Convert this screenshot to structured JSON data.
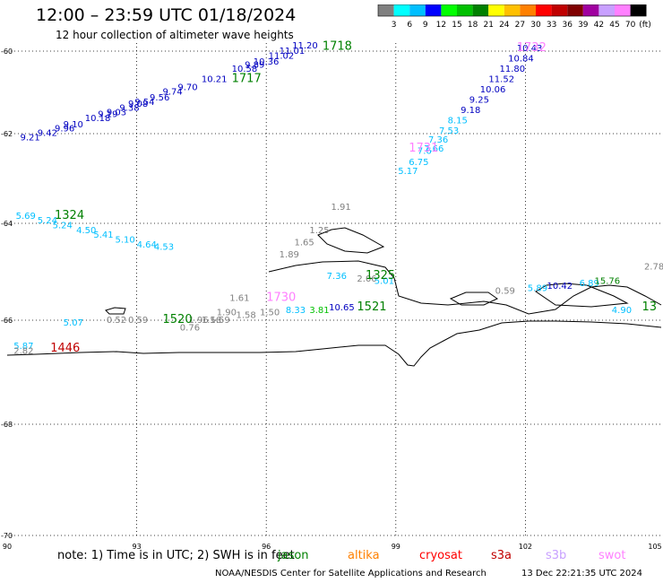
{
  "header": {
    "title": "12:00 – 23:59 UTC 01/18/2024",
    "subtitle": "12 hour collection of altimeter wave heights"
  },
  "legend": {
    "unit": "(ft)",
    "bins": [
      {
        "label": "3",
        "color": "#808080"
      },
      {
        "label": "6",
        "color": "#00ffff"
      },
      {
        "label": "9",
        "color": "#00bfff"
      },
      {
        "label": "12",
        "color": "#0000ff"
      },
      {
        "label": "15",
        "color": "#00ff00"
      },
      {
        "label": "18",
        "color": "#00c000"
      },
      {
        "label": "21",
        "color": "#008000"
      },
      {
        "label": "24",
        "color": "#ffff00"
      },
      {
        "label": "27",
        "color": "#ffc000"
      },
      {
        "label": "30",
        "color": "#ff8000"
      },
      {
        "label": "33",
        "color": "#ff0000"
      },
      {
        "label": "36",
        "color": "#c00000"
      },
      {
        "label": "39",
        "color": "#800000"
      },
      {
        "label": "42",
        "color": "#a000a0"
      },
      {
        "label": "45",
        "color": "#c8a0ff"
      },
      {
        "label": "70",
        "color": "#ff80ff"
      },
      {
        "label": "",
        "color": "#000000"
      }
    ]
  },
  "map": {
    "lat_labels": [
      {
        "text": "-60",
        "lat": -60
      },
      {
        "text": "-62",
        "lat": -62
      },
      {
        "text": "-64",
        "lat": -64
      },
      {
        "text": "-66",
        "lat": -66
      },
      {
        "text": "-68",
        "lat": -68
      },
      {
        "text": "-70",
        "lat": -70
      }
    ],
    "lon_labels": [
      {
        "text": "90",
        "lon": 90
      },
      {
        "text": "93",
        "lon": 93
      },
      {
        "text": "96",
        "lon": 96
      },
      {
        "text": "99",
        "lon": 99
      },
      {
        "text": "102",
        "lon": 102
      },
      {
        "text": "105",
        "lon": 105
      }
    ],
    "track_labels": [
      {
        "text": "1718",
        "lon": 97.3,
        "lat": -59.97,
        "color": "#008000"
      },
      {
        "text": "1717",
        "lon": 95.2,
        "lat": -60.75,
        "color": "#008000"
      },
      {
        "text": "1732",
        "lon": 101.8,
        "lat": -60.0,
        "color": "#ff80ff"
      },
      {
        "text": "1731",
        "lon": 99.3,
        "lat": -62.4,
        "color": "#ff80ff"
      },
      {
        "text": "1324",
        "lon": 91.1,
        "lat": -63.9,
        "color": "#008000"
      },
      {
        "text": "1325",
        "lon": 98.3,
        "lat": -65.15,
        "color": "#008000"
      },
      {
        "text": "1521",
        "lon": 98.1,
        "lat": -65.8,
        "color": "#008000"
      },
      {
        "text": "1730",
        "lon": 96.0,
        "lat": -65.6,
        "color": "#ff80ff"
      },
      {
        "text": "1520",
        "lon": 93.6,
        "lat": -66.05,
        "color": "#008000"
      },
      {
        "text": "1446",
        "lon": 91.0,
        "lat": -66.6,
        "color": "#c00000"
      },
      {
        "text": "13",
        "lon": 104.7,
        "lat": -65.8,
        "color": "#008000"
      }
    ],
    "wave_labels": [
      {
        "text": "11.20",
        "lon": 96.6,
        "lat": -59.93,
        "color": "#0000c0"
      },
      {
        "text": "11.01",
        "lon": 96.3,
        "lat": -60.07,
        "color": "#0000c0"
      },
      {
        "text": "11.02",
        "lon": 96.05,
        "lat": -60.18,
        "color": "#0000c0"
      },
      {
        "text": "10.36",
        "lon": 95.7,
        "lat": -60.33,
        "color": "#0000c0"
      },
      {
        "text": "9.89",
        "lon": 95.5,
        "lat": -60.4,
        "color": "#0000c0"
      },
      {
        "text": "10.58",
        "lon": 95.2,
        "lat": -60.5,
        "color": "#0000c0"
      },
      {
        "text": "10.21",
        "lon": 94.5,
        "lat": -60.75,
        "color": "#0000c0"
      },
      {
        "text": "9.70",
        "lon": 93.95,
        "lat": -60.95,
        "color": "#0000c0"
      },
      {
        "text": "9.74",
        "lon": 93.6,
        "lat": -61.05,
        "color": "#0000c0"
      },
      {
        "text": "9.56",
        "lon": 93.3,
        "lat": -61.2,
        "color": "#0000c0"
      },
      {
        "text": "9.54",
        "lon": 92.95,
        "lat": -61.3,
        "color": "#0000c0"
      },
      {
        "text": "9.08",
        "lon": 92.8,
        "lat": -61.35,
        "color": "#0000c0"
      },
      {
        "text": "9.38",
        "lon": 92.6,
        "lat": -61.45,
        "color": "#0000c0"
      },
      {
        "text": "9.03",
        "lon": 92.3,
        "lat": -61.55,
        "color": "#0000c0"
      },
      {
        "text": "9.19",
        "lon": 92.1,
        "lat": -61.6,
        "color": "#0000c0"
      },
      {
        "text": "10.18",
        "lon": 91.8,
        "lat": -61.7,
        "color": "#0000c0"
      },
      {
        "text": "9.10",
        "lon": 91.3,
        "lat": -61.85,
        "color": "#0000c0"
      },
      {
        "text": "9.96",
        "lon": 91.1,
        "lat": -61.95,
        "color": "#0000c0"
      },
      {
        "text": "9.42",
        "lon": 90.7,
        "lat": -62.05,
        "color": "#0000c0"
      },
      {
        "text": "9.21",
        "lon": 90.3,
        "lat": -62.15,
        "color": "#0000c0"
      },
      {
        "text": "10.43",
        "lon": 101.8,
        "lat": -60.0,
        "color": "#0000c0"
      },
      {
        "text": "10.84",
        "lon": 101.6,
        "lat": -60.25,
        "color": "#0000c0"
      },
      {
        "text": "11.80",
        "lon": 101.4,
        "lat": -60.5,
        "color": "#0000c0"
      },
      {
        "text": "11.52",
        "lon": 101.15,
        "lat": -60.75,
        "color": "#0000c0"
      },
      {
        "text": "10.06",
        "lon": 100.95,
        "lat": -61.0,
        "color": "#0000c0"
      },
      {
        "text": "9.25",
        "lon": 100.7,
        "lat": -61.25,
        "color": "#0000c0"
      },
      {
        "text": "9.18",
        "lon": 100.5,
        "lat": -61.5,
        "color": "#0000c0"
      },
      {
        "text": "8.15",
        "lon": 100.2,
        "lat": -61.75,
        "color": "#00bfff"
      },
      {
        "text": "7.53",
        "lon": 100.0,
        "lat": -62.0,
        "color": "#00bfff"
      },
      {
        "text": "7.36",
        "lon": 99.75,
        "lat": -62.2,
        "color": "#00bfff"
      },
      {
        "text": "7.66",
        "lon": 99.65,
        "lat": -62.4,
        "color": "#00bfff"
      },
      {
        "text": "7.6",
        "lon": 99.5,
        "lat": -62.45,
        "color": "#00bfff"
      },
      {
        "text": "6.75",
        "lon": 99.3,
        "lat": -62.7,
        "color": "#00bfff"
      },
      {
        "text": "5.17",
        "lon": 99.05,
        "lat": -62.9,
        "color": "#00bfff"
      },
      {
        "text": "1.91",
        "lon": 97.5,
        "lat": -63.7,
        "color": "#808080"
      },
      {
        "text": "1.25",
        "lon": 97.0,
        "lat": -64.2,
        "color": "#808080"
      },
      {
        "text": "1.65",
        "lon": 96.65,
        "lat": -64.45,
        "color": "#808080"
      },
      {
        "text": "1.89",
        "lon": 96.3,
        "lat": -64.7,
        "color": "#808080"
      },
      {
        "text": "1.61",
        "lon": 95.15,
        "lat": -65.6,
        "color": "#808080"
      },
      {
        "text": "1.90",
        "lon": 94.85,
        "lat": -65.9,
        "color": "#808080"
      },
      {
        "text": "1.59",
        "lon": 94.7,
        "lat": -66.05,
        "color": "#808080"
      },
      {
        "text": "1.56",
        "lon": 94.5,
        "lat": -66.05,
        "color": "#808080"
      },
      {
        "text": "1.96",
        "lon": 94.2,
        "lat": -66.05,
        "color": "#808080"
      },
      {
        "text": "1.58",
        "lon": 95.3,
        "lat": -65.95,
        "color": "#808080"
      },
      {
        "text": "1.50",
        "lon": 95.85,
        "lat": -65.9,
        "color": "#808080"
      },
      {
        "text": "0.76",
        "lon": 94.0,
        "lat": -66.2,
        "color": "#808080"
      },
      {
        "text": "0.59",
        "lon": 92.8,
        "lat": -66.05,
        "color": "#808080"
      },
      {
        "text": "0.52",
        "lon": 92.3,
        "lat": -66.05,
        "color": "#808080"
      },
      {
        "text": "2.06",
        "lon": 98.1,
        "lat": -65.2,
        "color": "#808080"
      },
      {
        "text": "0.59",
        "lon": 101.3,
        "lat": -65.45,
        "color": "#808080"
      },
      {
        "text": "2.78",
        "lon": 104.75,
        "lat": -64.95,
        "color": "#808080"
      },
      {
        "text": "5.69",
        "lon": 90.2,
        "lat": -63.9,
        "color": "#00bfff"
      },
      {
        "text": "5.24",
        "lon": 90.7,
        "lat": -64.0,
        "color": "#00bfff"
      },
      {
        "text": "5.24",
        "lon": 91.05,
        "lat": -64.1,
        "color": "#00bfff"
      },
      {
        "text": "4.50",
        "lon": 91.6,
        "lat": -64.2,
        "color": "#00bfff"
      },
      {
        "text": "5.41",
        "lon": 92.0,
        "lat": -64.3,
        "color": "#00bfff"
      },
      {
        "text": "5.10",
        "lon": 92.5,
        "lat": -64.4,
        "color": "#00bfff"
      },
      {
        "text": "4.64",
        "lon": 93.0,
        "lat": -64.5,
        "color": "#00bfff"
      },
      {
        "text": "4.53",
        "lon": 93.4,
        "lat": -64.55,
        "color": "#00bfff"
      },
      {
        "text": "7.36",
        "lon": 97.4,
        "lat": -65.15,
        "color": "#00bfff"
      },
      {
        "text": "5.01",
        "lon": 98.5,
        "lat": -65.25,
        "color": "#00bfff"
      },
      {
        "text": "8.33",
        "lon": 96.45,
        "lat": -65.85,
        "color": "#00bfff"
      },
      {
        "text": "3.81",
        "lon": 97.0,
        "lat": -65.85,
        "color": "#00c000"
      },
      {
        "text": "10.65",
        "lon": 97.45,
        "lat": -65.8,
        "color": "#0000c0"
      },
      {
        "text": "5.07",
        "lon": 91.3,
        "lat": -66.1,
        "color": "#00bfff"
      },
      {
        "text": "5.87",
        "lon": 90.15,
        "lat": -66.55,
        "color": "#00bfff"
      },
      {
        "text": "2.82",
        "lon": 90.15,
        "lat": -66.65,
        "color": "#808080"
      },
      {
        "text": "5.89",
        "lon": 102.05,
        "lat": -65.4,
        "color": "#00bfff"
      },
      {
        "text": "10.42",
        "lon": 102.5,
        "lat": -65.35,
        "color": "#0000c0"
      },
      {
        "text": "6.89",
        "lon": 103.25,
        "lat": -65.3,
        "color": "#00bfff"
      },
      {
        "text": "15.76",
        "lon": 103.6,
        "lat": -65.25,
        "color": "#008000"
      },
      {
        "text": "4.90",
        "lon": 104.0,
        "lat": -65.85,
        "color": "#00bfff"
      }
    ]
  },
  "footer": {
    "note": "note:  1) Time is in UTC; 2) SWH is in feet",
    "missions": [
      {
        "text": "jason",
        "color": "#008000"
      },
      {
        "text": "altika",
        "color": "#ff8000"
      },
      {
        "text": "cryosat",
        "color": "#ff0000"
      },
      {
        "text": "s3a",
        "color": "#c00000"
      },
      {
        "text": "s3b",
        "color": "#c8a0ff"
      },
      {
        "text": "swot",
        "color": "#ff80ff"
      }
    ],
    "credit": "NOAA/NESDIS Center for Satellite Applications and Research",
    "timestamp": "13 Dec 22:21:35 UTC 2024"
  }
}
